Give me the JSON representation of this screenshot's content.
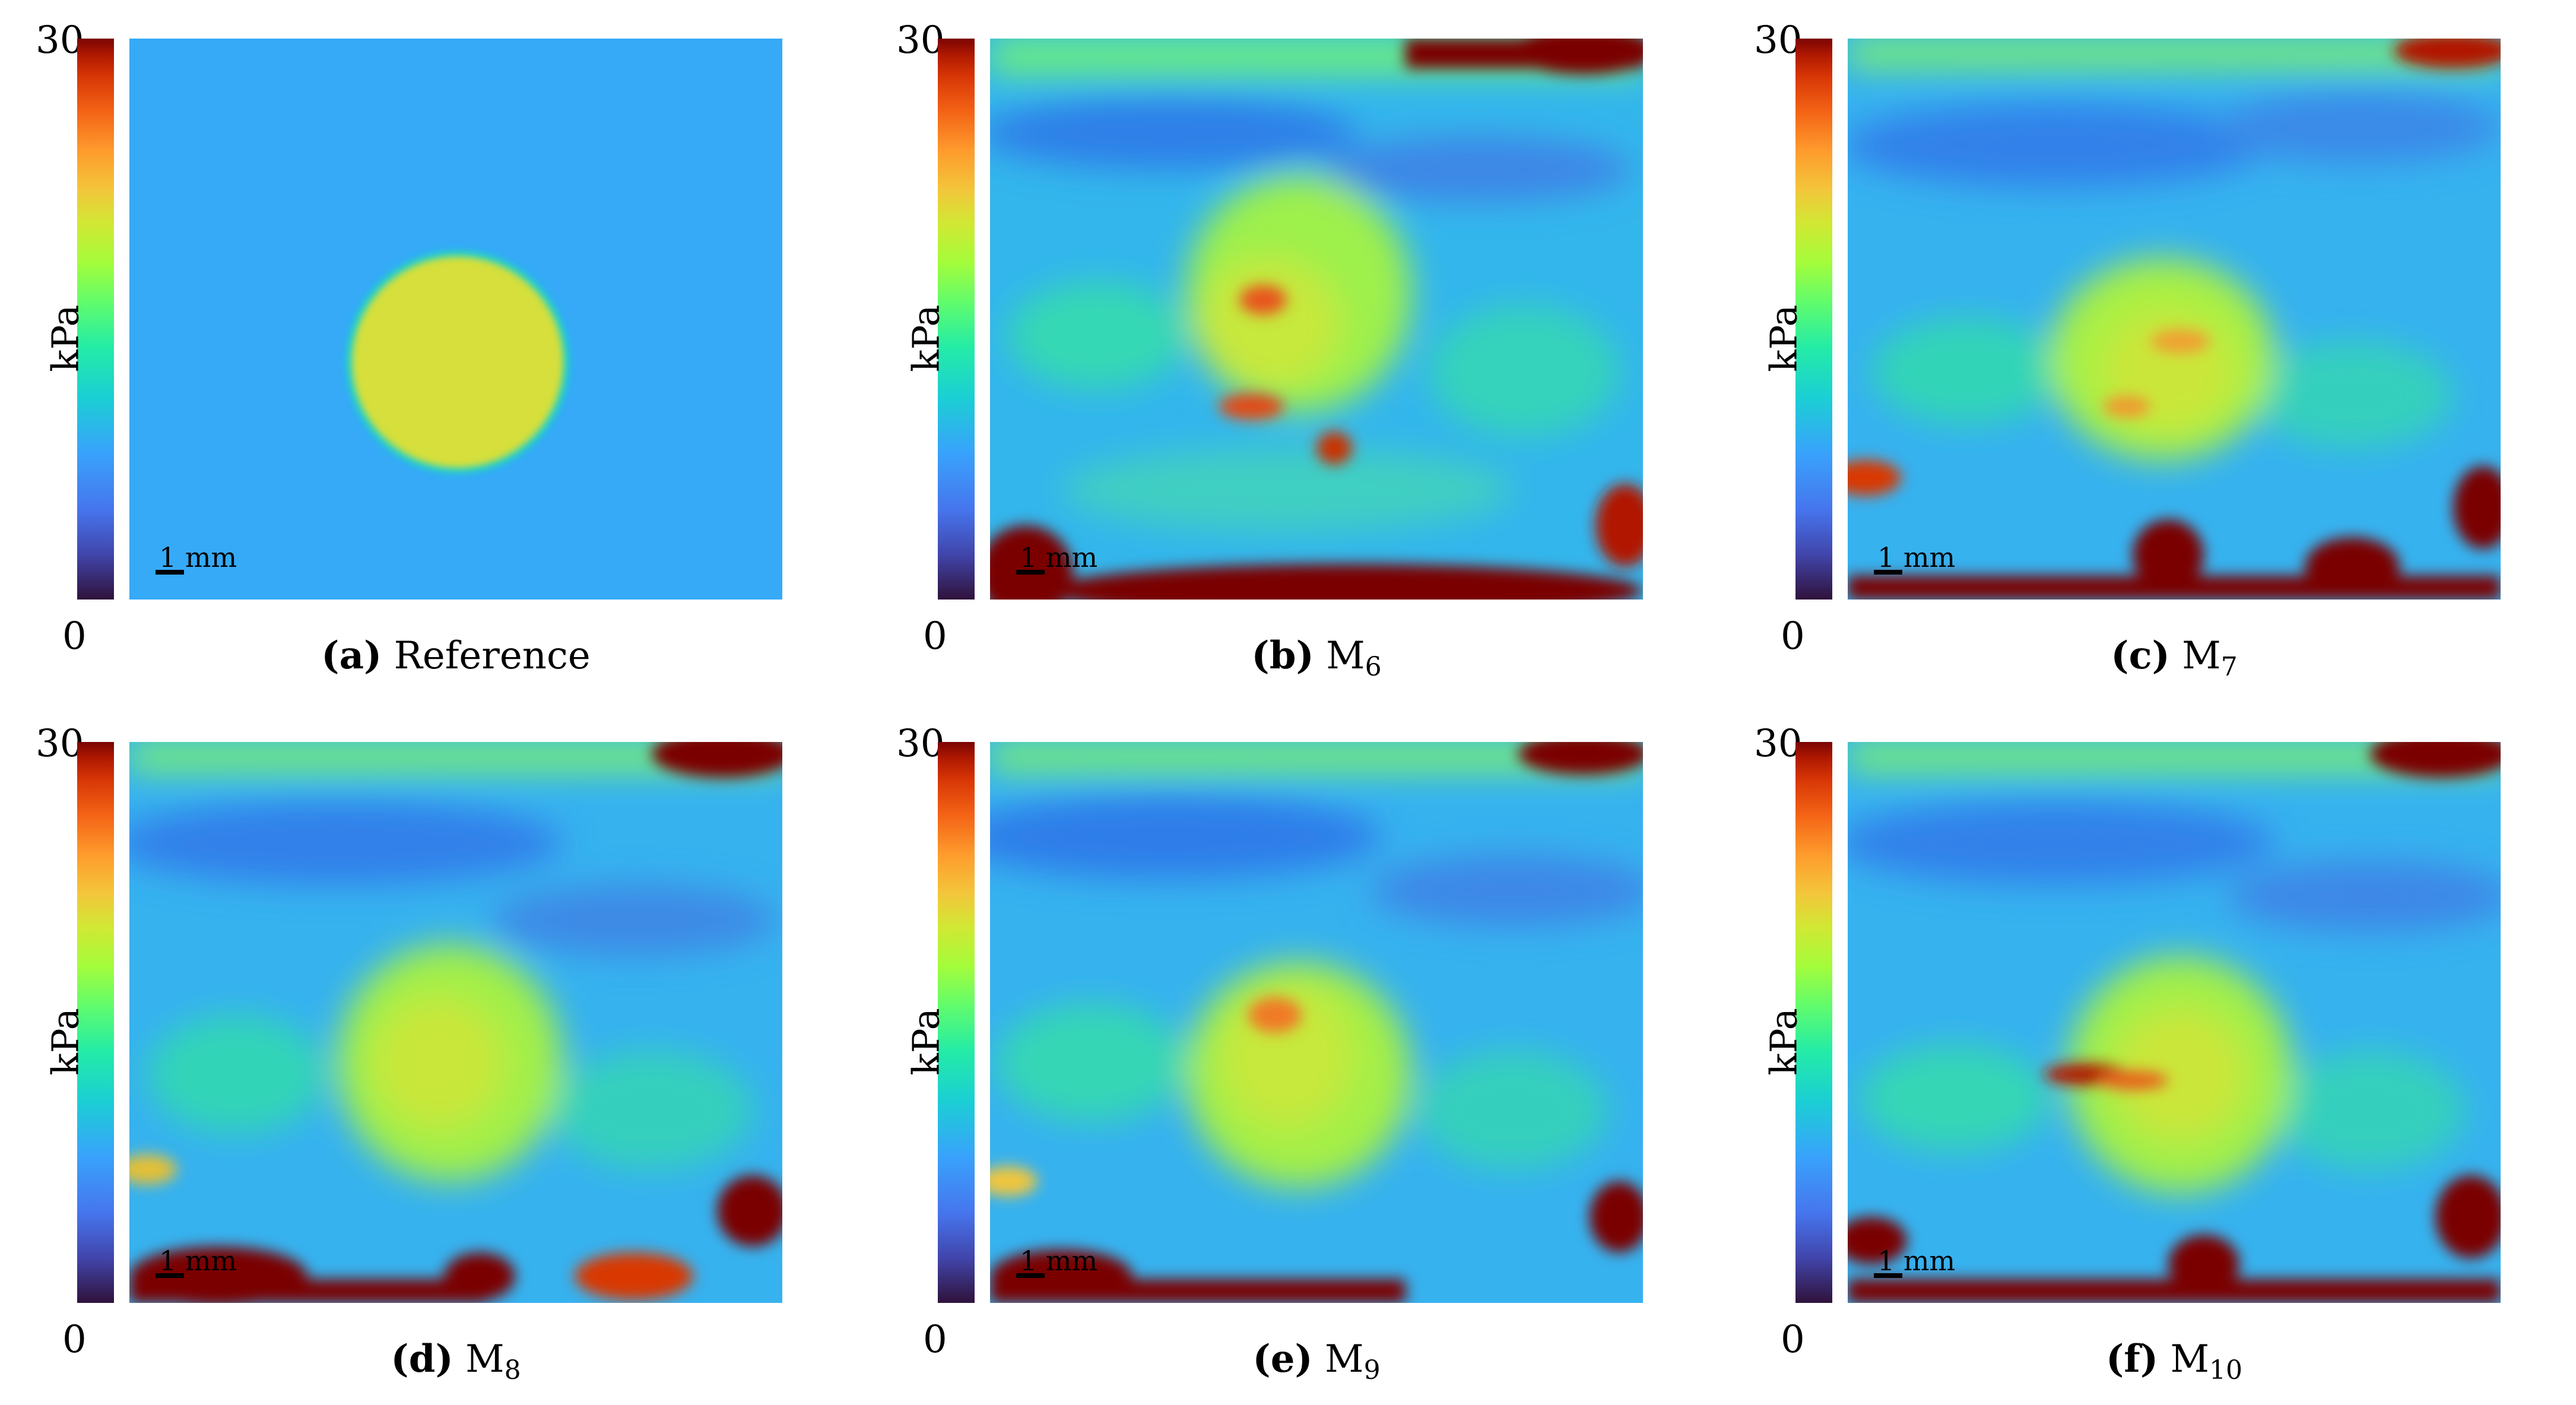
{
  "colorbar": {
    "max_label": "30",
    "min_label": "0",
    "unit": "kPa"
  },
  "scalebar_label": "1 mm",
  "colors": {
    "background": "#3aa8f7",
    "inclusion": "#d6df3a",
    "hot": "#7a0403"
  },
  "panels": [
    {
      "tag": "(a)",
      "name": "Reference",
      "subscript": ""
    },
    {
      "tag": "(b)",
      "name": "M",
      "subscript": "6"
    },
    {
      "tag": "(c)",
      "name": "M",
      "subscript": "7"
    },
    {
      "tag": "(d)",
      "name": "M",
      "subscript": "8"
    },
    {
      "tag": "(e)",
      "name": "M",
      "subscript": "9"
    },
    {
      "tag": "(f)",
      "name": "M",
      "subscript": "10"
    }
  ]
}
